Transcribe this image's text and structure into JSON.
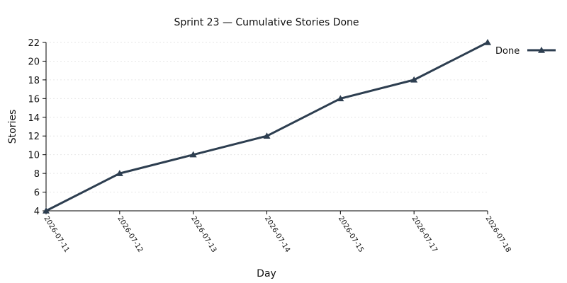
{
  "chart_data": {
    "type": "line",
    "title": "Sprint 23 — Cumulative Stories Done",
    "xlabel": "Day",
    "ylabel": "Stories",
    "categories": [
      "2026-07-11",
      "2026-07-12",
      "2026-07-13",
      "2026-07-14",
      "2026-07-15",
      "2026-07-17",
      "2026-07-18"
    ],
    "series": [
      {
        "name": "Done",
        "values": [
          4,
          8,
          10,
          12,
          16,
          18,
          22
        ],
        "color": "#2d3e50",
        "marker": "triangle"
      }
    ],
    "ylim": [
      4,
      22
    ],
    "yticks": [
      4,
      6,
      8,
      10,
      12,
      14,
      16,
      18,
      20,
      22
    ],
    "grid": true,
    "legend_position": "right"
  }
}
